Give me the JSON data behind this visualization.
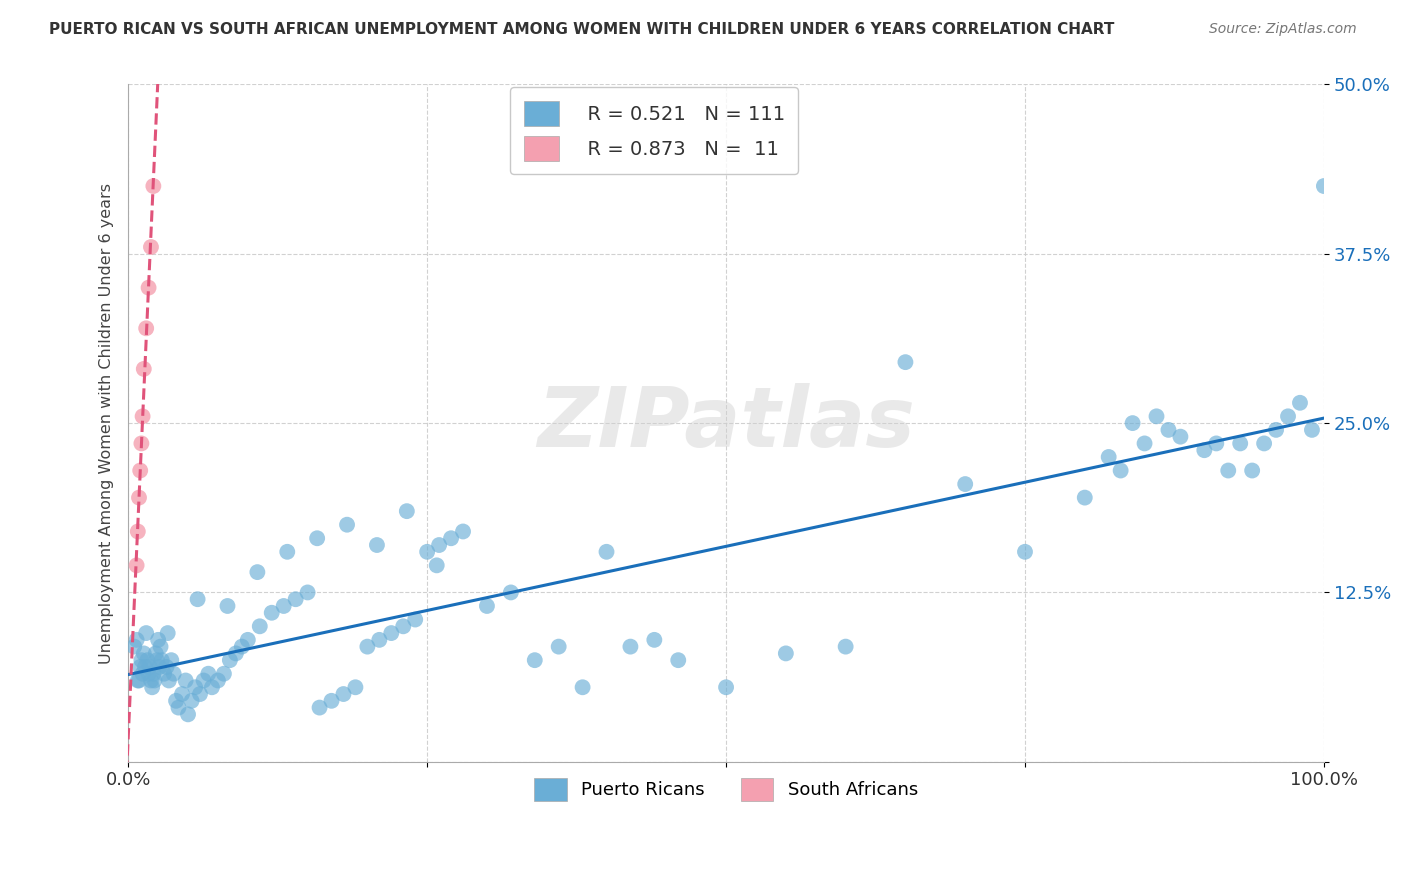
{
  "title": "PUERTO RICAN VS SOUTH AFRICAN UNEMPLOYMENT AMONG WOMEN WITH CHILDREN UNDER 6 YEARS CORRELATION CHART",
  "source": "Source: ZipAtlas.com",
  "ylabel": "Unemployment Among Women with Children Under 6 years",
  "xlim": [
    0,
    1.0
  ],
  "ylim": [
    0,
    0.5
  ],
  "yticks": [
    0.0,
    0.125,
    0.25,
    0.375,
    0.5
  ],
  "yticklabels": [
    "",
    "12.5%",
    "25.0%",
    "37.5%",
    "50.0%"
  ],
  "legend_r1": "R = 0.521",
  "legend_n1": "N = 111",
  "legend_r2": "R = 0.873",
  "legend_n2": "N =  11",
  "blue_color": "#6aaed6",
  "pink_color": "#f4a0b0",
  "line_blue": "#1a6fba",
  "line_pink": "#e0537a",
  "watermark": "ZIPatlas",
  "pr_x": [
    0.005,
    0.007,
    0.009,
    0.01,
    0.011,
    0.012,
    0.013,
    0.014,
    0.015,
    0.016,
    0.017,
    0.018,
    0.019,
    0.02,
    0.021,
    0.022,
    0.023,
    0.024,
    0.025,
    0.026,
    0.027,
    0.028,
    0.03,
    0.032,
    0.034,
    0.036,
    0.038,
    0.04,
    0.042,
    0.045,
    0.048,
    0.05,
    0.053,
    0.056,
    0.06,
    0.063,
    0.067,
    0.07,
    0.075,
    0.08,
    0.085,
    0.09,
    0.095,
    0.1,
    0.11,
    0.12,
    0.13,
    0.14,
    0.15,
    0.16,
    0.17,
    0.18,
    0.19,
    0.2,
    0.21,
    0.22,
    0.23,
    0.24,
    0.25,
    0.26,
    0.27,
    0.28,
    0.3,
    0.32,
    0.34,
    0.36,
    0.38,
    0.4,
    0.42,
    0.44,
    0.46,
    0.5,
    0.55,
    0.6,
    0.65,
    0.7,
    0.75,
    0.8,
    0.82,
    0.83,
    0.84,
    0.85,
    0.86,
    0.87,
    0.88,
    0.9,
    0.91,
    0.92,
    0.93,
    0.94,
    0.95,
    0.96,
    0.97,
    0.98,
    0.99,
    1.0,
    0.008,
    0.033,
    0.058,
    0.083,
    0.108,
    0.133,
    0.158,
    0.183,
    0.208,
    0.233,
    0.258
  ],
  "pr_y": [
    0.085,
    0.09,
    0.06,
    0.07,
    0.075,
    0.065,
    0.08,
    0.07,
    0.095,
    0.075,
    0.065,
    0.07,
    0.06,
    0.055,
    0.065,
    0.06,
    0.08,
    0.075,
    0.09,
    0.07,
    0.085,
    0.075,
    0.065,
    0.07,
    0.06,
    0.075,
    0.065,
    0.045,
    0.04,
    0.05,
    0.06,
    0.035,
    0.045,
    0.055,
    0.05,
    0.06,
    0.065,
    0.055,
    0.06,
    0.065,
    0.075,
    0.08,
    0.085,
    0.09,
    0.1,
    0.11,
    0.115,
    0.12,
    0.125,
    0.04,
    0.045,
    0.05,
    0.055,
    0.085,
    0.09,
    0.095,
    0.1,
    0.105,
    0.155,
    0.16,
    0.165,
    0.17,
    0.115,
    0.125,
    0.075,
    0.085,
    0.055,
    0.155,
    0.085,
    0.09,
    0.075,
    0.055,
    0.08,
    0.085,
    0.295,
    0.205,
    0.155,
    0.195,
    0.225,
    0.215,
    0.25,
    0.235,
    0.255,
    0.245,
    0.24,
    0.23,
    0.235,
    0.215,
    0.235,
    0.215,
    0.235,
    0.245,
    0.255,
    0.265,
    0.245,
    0.425,
    0.06,
    0.095,
    0.12,
    0.115,
    0.14,
    0.155,
    0.165,
    0.175,
    0.16,
    0.185,
    0.145
  ],
  "sa_x": [
    0.007,
    0.008,
    0.009,
    0.01,
    0.011,
    0.012,
    0.013,
    0.015,
    0.017,
    0.019,
    0.021
  ],
  "sa_y": [
    0.145,
    0.17,
    0.195,
    0.215,
    0.235,
    0.255,
    0.29,
    0.32,
    0.35,
    0.38,
    0.425
  ]
}
